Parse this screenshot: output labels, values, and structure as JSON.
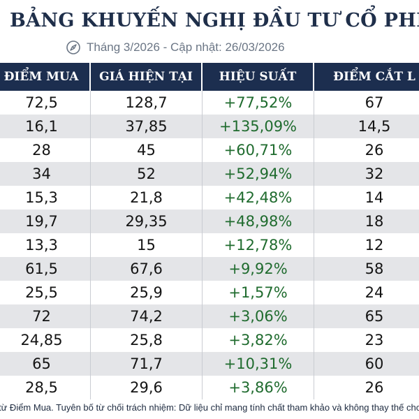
{
  "title": "BẢNG KHUYẾN NGHỊ ĐẦU TƯ CỔ PHIẾU",
  "subtitle": "Tháng 3/2026 - Cập nhật: 26/03/2026",
  "icons": {
    "subtitle_icon": "compass-icon"
  },
  "colors": {
    "header_bg": "#1c2e4f",
    "positive": "#1f6b2e",
    "row_alt": "#e4e5e8"
  },
  "table": {
    "columns": [
      "ĐIỂM MUA",
      "GIÁ HIỆN TẠI",
      "HIỆU SUẤT",
      "ĐIỂM CẮT L"
    ],
    "rows": [
      [
        "72,5",
        "128,7",
        "+77,52%",
        "67"
      ],
      [
        "16,1",
        "37,85",
        "+135,09%",
        "14,5"
      ],
      [
        "28",
        "45",
        "+60,71%",
        "26"
      ],
      [
        "34",
        "52",
        "+52,94%",
        "32"
      ],
      [
        "15,3",
        "21,8",
        "+42,48%",
        "14"
      ],
      [
        "19,7",
        "29,35",
        "+48,98%",
        "18"
      ],
      [
        "13,3",
        "15",
        "+12,78%",
        "12"
      ],
      [
        "61,5",
        "67,6",
        "+9,92%",
        "58"
      ],
      [
        "25,5",
        "25,9",
        "+1,57%",
        "24"
      ],
      [
        "72",
        "74,2",
        "+3,06%",
        "65"
      ],
      [
        "24,85",
        "25,8",
        "+3,82%",
        "23"
      ],
      [
        "65",
        "71,7",
        "+10,31%",
        "60"
      ],
      [
        "28,5",
        "29,6",
        "+3,86%",
        "26"
      ]
    ]
  },
  "footer": "từ Điểm Mua. Tuyên bố từ chối trách nhiệm: Dữ liệu chỉ mang tính chất tham khảo và không thay thế cho lời"
}
